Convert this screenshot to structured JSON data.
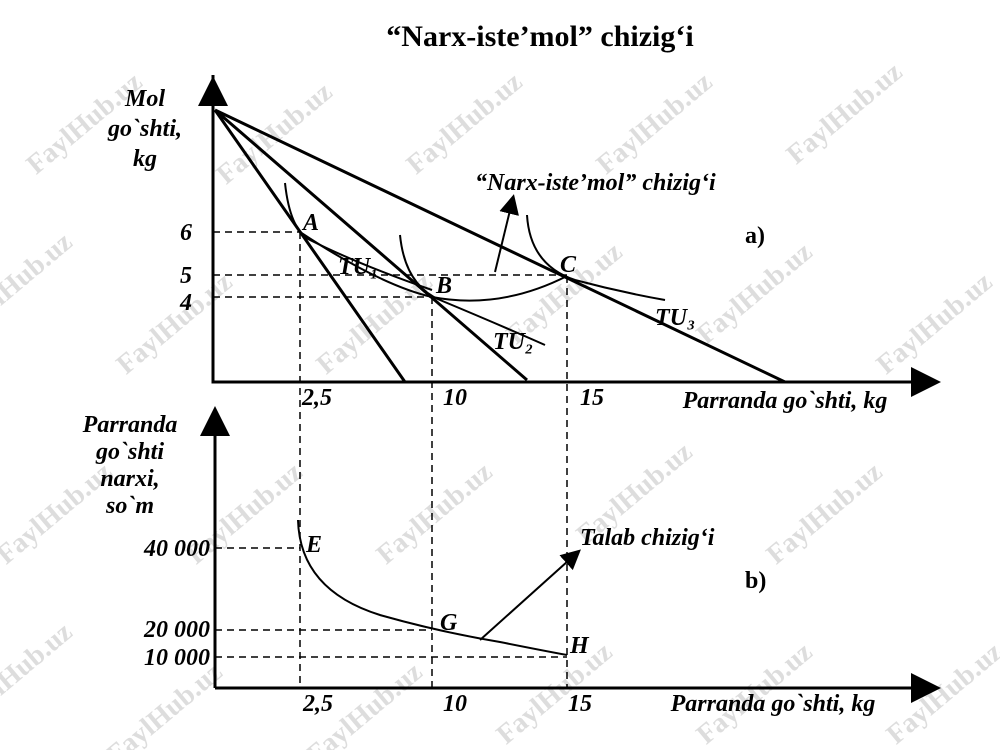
{
  "title": "“Narx-iste’mol” chizig‘i",
  "watermark": "FaylHub.uz",
  "panel_a": {
    "label": "a)",
    "y_axis_label": [
      "Mol",
      "go`shti,",
      "kg"
    ],
    "x_axis_label": "Parranda go`shti, kg",
    "y_ticks": [
      "6",
      "5",
      "4"
    ],
    "x_ticks": [
      "2,5",
      "10",
      "15"
    ],
    "points": [
      "A",
      "B",
      "C"
    ],
    "curves": [
      "TU₁",
      "TU₂",
      "TU₃"
    ],
    "annotation": "“Narx-iste’mol” chizig‘i"
  },
  "panel_b": {
    "label": "b)",
    "y_axis_label": [
      "Parranda",
      "go`shti",
      "narxi,",
      "so`m"
    ],
    "x_axis_label": "Parranda go`shti, kg",
    "y_ticks": [
      "40 000",
      "20 000",
      "10 000"
    ],
    "x_ticks": [
      "2,5",
      "10",
      "15"
    ],
    "points": [
      "E",
      "G",
      "H"
    ],
    "annotation": "Talab chizig‘i"
  }
}
